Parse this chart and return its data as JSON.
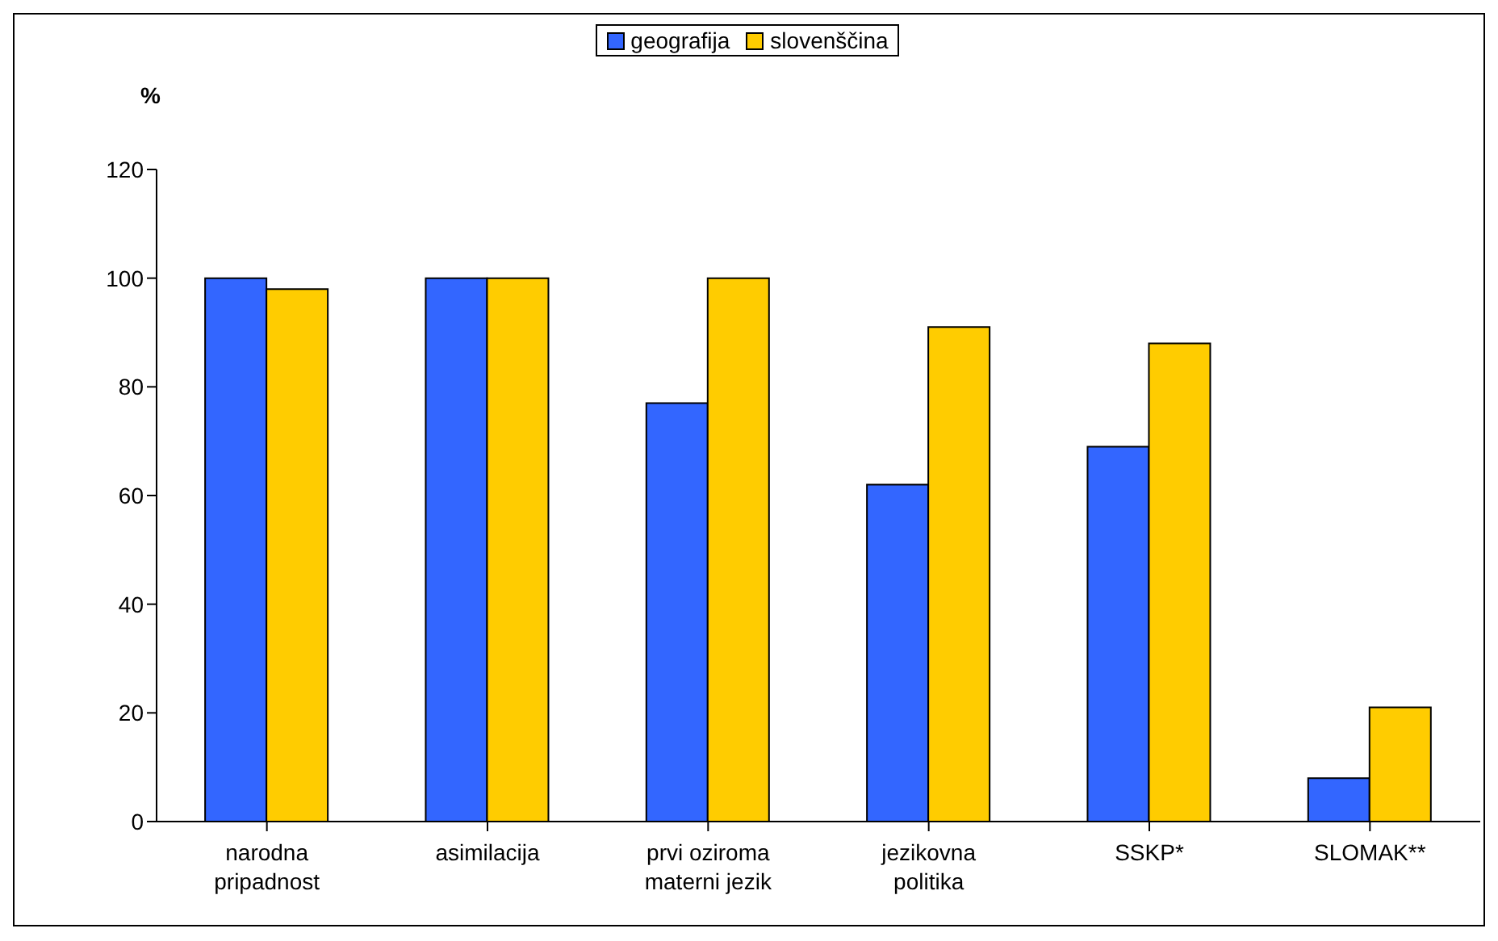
{
  "chart_data": {
    "type": "bar",
    "ylabel": "%",
    "categories": [
      "narodna pripadnost",
      "asimilacija",
      "prvi oziroma materni jezik",
      "jezikovna politika",
      "SSKP*",
      "SLOMAK**"
    ],
    "series": [
      {
        "name": "geografija",
        "color": "#3366ff",
        "values": [
          100,
          100,
          77,
          62,
          69,
          8
        ]
      },
      {
        "name": "slovenščina",
        "color": "#ffcc00",
        "values": [
          98,
          100,
          100,
          91,
          88,
          21
        ]
      }
    ],
    "ylim": [
      0,
      120
    ],
    "yticks": [
      0,
      20,
      40,
      60,
      80,
      100,
      120
    ],
    "grid": false,
    "legend": "top"
  }
}
